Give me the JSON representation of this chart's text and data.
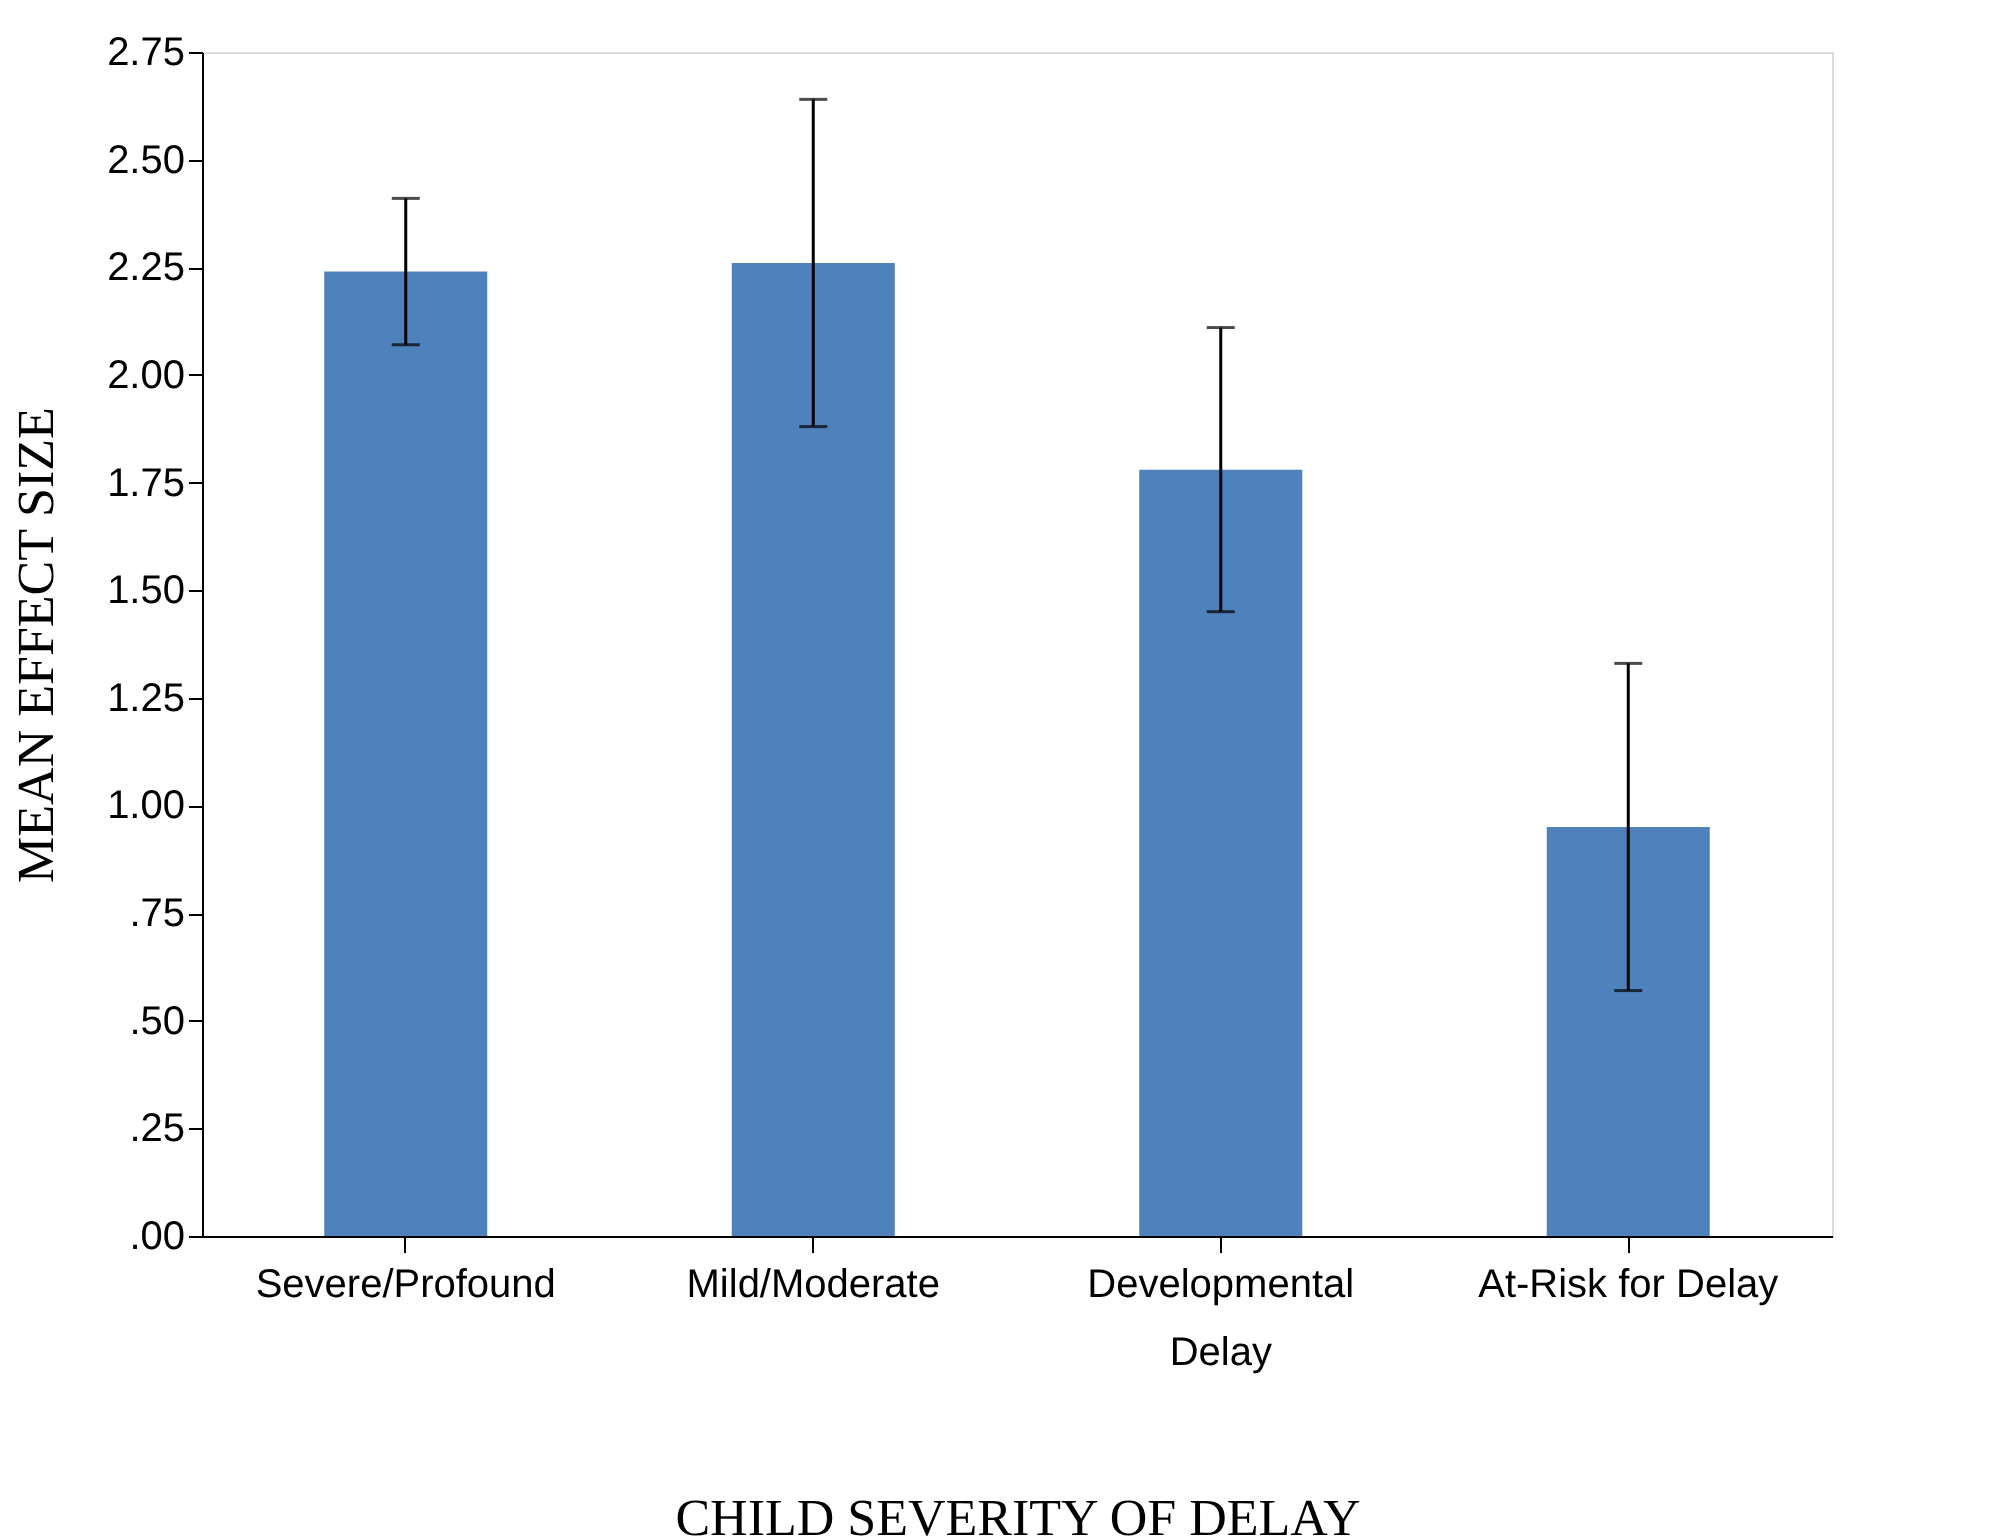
{
  "chart_data": {
    "type": "bar",
    "xlabel": "CHILD SEVERITY OF DELAY",
    "ylabel": "MEAN EFFECT SIZE",
    "categories": [
      "Severe/Profound",
      "Mild/Moderate",
      "Developmental Delay",
      "At-Risk for Delay"
    ],
    "series": [
      {
        "color": "#4f81bd",
        "values": [
          2.24,
          2.26,
          1.78,
          0.95
        ],
        "errors": [
          [
            2.07,
            2.41
          ],
          [
            1.88,
            2.64
          ],
          [
            1.45,
            2.11
          ],
          [
            0.57,
            1.33
          ]
        ]
      }
    ],
    "ylim": [
      0,
      2.75
    ],
    "yticks": [
      {
        "value": 0,
        "label": ".00"
      },
      {
        "value": 0.25,
        "label": ".25"
      },
      {
        "value": 0.5,
        "label": ".50"
      },
      {
        "value": 0.75,
        "label": ".75"
      },
      {
        "value": 1,
        "label": "1.00"
      },
      {
        "value": 1.25,
        "label": "1.25"
      },
      {
        "value": 1.5,
        "label": "1.50"
      },
      {
        "value": 1.75,
        "label": "1.75"
      },
      {
        "value": 2,
        "label": "2.00"
      },
      {
        "value": 2.25,
        "label": "2.25"
      },
      {
        "value": 2.5,
        "label": "2.50"
      },
      {
        "value": 2.75,
        "label": "2.75"
      }
    ],
    "grid": false,
    "legend": false
  }
}
